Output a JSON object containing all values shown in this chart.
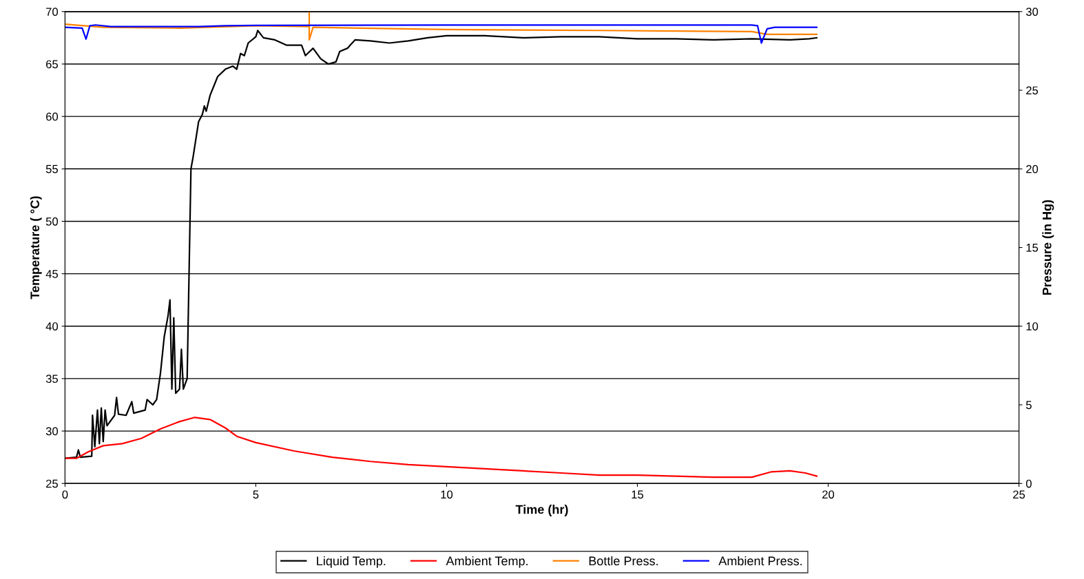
{
  "chart_data": {
    "type": "line",
    "xlabel": "Time (hr)",
    "ylabel": "Temperature ( °C)",
    "y2label": "Pressure (in Hg)",
    "xlim": [
      0,
      25
    ],
    "xticks": [
      0,
      5,
      10,
      15,
      20,
      25
    ],
    "ylim": [
      25,
      70
    ],
    "yticks": [
      25,
      30,
      35,
      40,
      45,
      50,
      55,
      60,
      65,
      70
    ],
    "y2lim": [
      0,
      30
    ],
    "y2ticks": [
      0,
      5,
      10,
      15,
      20,
      25,
      30
    ],
    "grid": "y",
    "legend": "bottom",
    "marker": "none",
    "line_style": "solid",
    "series": [
      {
        "name": "Liquid Temp.",
        "color": "#000000",
        "x": [
          0,
          0.3,
          0.35,
          0.4,
          0.7,
          0.72,
          0.78,
          0.85,
          0.9,
          0.95,
          1.0,
          1.05,
          1.1,
          1.3,
          1.35,
          1.4,
          1.6,
          1.75,
          1.8,
          2.1,
          2.15,
          2.3,
          2.4,
          2.5,
          2.6,
          2.7,
          2.75,
          2.8,
          2.85,
          2.9,
          3.0,
          3.05,
          3.1,
          3.2,
          3.25,
          3.3,
          3.35,
          3.5,
          3.6,
          3.65,
          3.7,
          3.8,
          4.0,
          4.2,
          4.4,
          4.5,
          4.6,
          4.7,
          4.8,
          5.0,
          5.05,
          5.2,
          5.5,
          5.8,
          6.2,
          6.3,
          6.5,
          6.7,
          6.9,
          7.1,
          7.2,
          7.4,
          7.6,
          8.0,
          8.5,
          9.0,
          9.5,
          10,
          11,
          12,
          13,
          14,
          15,
          16,
          17,
          18,
          19,
          19.5,
          19.7
        ],
        "values": [
          27.4,
          27.5,
          28.2,
          27.5,
          27.6,
          31.5,
          28.5,
          32,
          28.8,
          32.2,
          29,
          32,
          30.5,
          31.5,
          33.2,
          31.6,
          31.5,
          32.8,
          31.7,
          32,
          33,
          32.5,
          33,
          35.5,
          39,
          41,
          42.5,
          34,
          40.8,
          33.6,
          34,
          37.8,
          34,
          35,
          45,
          55,
          56,
          59.5,
          60.2,
          61,
          60.5,
          62,
          63.8,
          64.5,
          64.8,
          64.5,
          66,
          65.8,
          67,
          67.6,
          68.2,
          67.5,
          67.3,
          66.8,
          66.8,
          65.8,
          66.5,
          65.5,
          65,
          65.2,
          66.2,
          66.5,
          67.3,
          67.2,
          67,
          67.2,
          67.5,
          67.7,
          67.7,
          67.5,
          67.6,
          67.6,
          67.4,
          67.4,
          67.3,
          67.4,
          67.3,
          67.4,
          67.5
        ]
      },
      {
        "name": "Ambient Temp.",
        "color": "#ff0000",
        "x": [
          0,
          0.3,
          0.6,
          1.0,
          1.5,
          2.0,
          2.5,
          3.0,
          3.4,
          3.8,
          4.2,
          4.5,
          5,
          6,
          7,
          8,
          9,
          10,
          11,
          12,
          13,
          14,
          15,
          16,
          17,
          18,
          18.5,
          19,
          19.4,
          19.7
        ],
        "values": [
          27.4,
          27.4,
          28,
          28.6,
          28.8,
          29.3,
          30.2,
          30.9,
          31.3,
          31.1,
          30.3,
          29.5,
          28.9,
          28.1,
          27.5,
          27.1,
          26.8,
          26.6,
          26.4,
          26.2,
          26.0,
          25.8,
          25.8,
          25.7,
          25.6,
          25.6,
          26.1,
          26.2,
          26.0,
          25.7
        ]
      },
      {
        "name": "Bottle Press.",
        "color": "#ff8000",
        "axis": "y2",
        "x": [
          0,
          0.5,
          1.0,
          3.0,
          5.0,
          6.4,
          6.4,
          6.4,
          6.5,
          10,
          14,
          18,
          18.4,
          19.7
        ],
        "values": [
          29.2,
          29.1,
          29.0,
          28.95,
          29.1,
          29.05,
          30,
          28.2,
          29.0,
          28.86,
          28.8,
          28.73,
          28.55,
          28.55
        ]
      },
      {
        "name": "Ambient Press.",
        "color": "#0000ff",
        "axis": "y2",
        "x": [
          0,
          0.45,
          0.55,
          0.65,
          0.8,
          1.2,
          3.5,
          4.2,
          5,
          10,
          18,
          18.15,
          18.25,
          18.4,
          18.6,
          19.7
        ],
        "values": [
          29.0,
          28.95,
          28.25,
          29.1,
          29.15,
          29.05,
          29.05,
          29.1,
          29.12,
          29.14,
          29.14,
          29.1,
          28.0,
          28.9,
          29.0,
          29.0
        ]
      }
    ]
  }
}
